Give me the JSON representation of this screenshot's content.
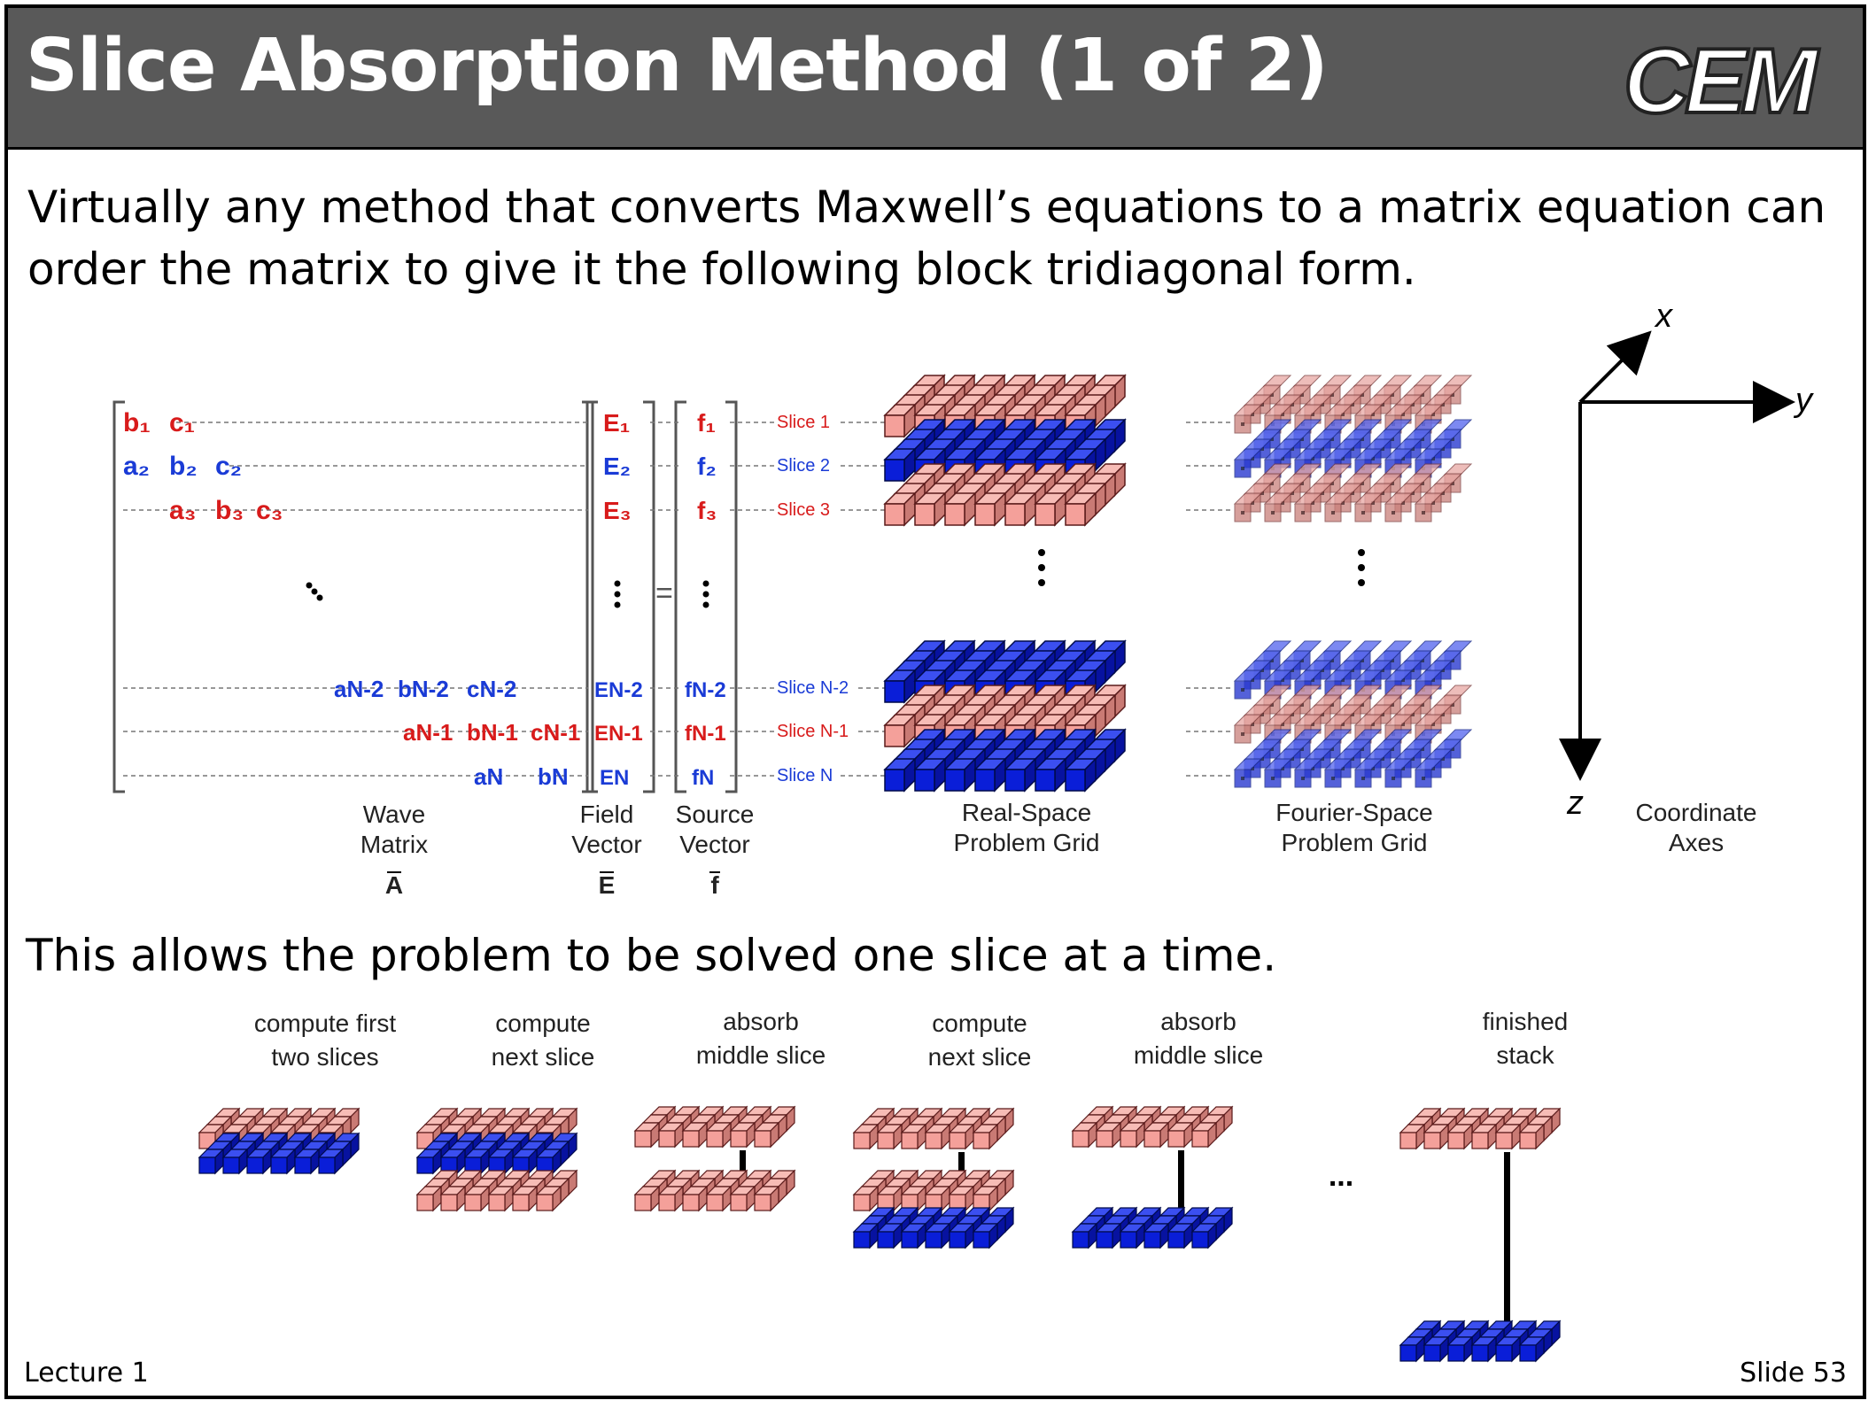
{
  "header": {
    "title": "Slice Absorption Method (1 of 2)",
    "logo_text": "CEM"
  },
  "intro_text": "Virtually any method that converts Maxwell’s equations to a matrix equation can order the matrix to give it the following block tridiagonal form.",
  "matrix": {
    "rows": [
      {
        "cells": [
          "b₁",
          "c₁"
        ],
        "colors": [
          "#d81b1b",
          "#d81b1b"
        ]
      },
      {
        "cells": [
          "a₂",
          "b₂",
          "c₂"
        ],
        "colors": [
          "#1a3bd6",
          "#1a3bd6",
          "#1a3bd6"
        ]
      },
      {
        "cells": [
          "a₃",
          "b₃",
          "c₃"
        ],
        "colors": [
          "#d81b1b",
          "#d81b1b",
          "#d81b1b"
        ]
      },
      {
        "cells": [
          "aN-2",
          "bN-2",
          "cN-2"
        ],
        "colors": [
          "#1a3bd6",
          "#1a3bd6",
          "#1a3bd6"
        ]
      },
      {
        "cells": [
          "aN-1",
          "bN-1",
          "cN-1"
        ],
        "colors": [
          "#d81b1b",
          "#d81b1b",
          "#d81b1b"
        ]
      },
      {
        "cells": [
          "aN",
          "bN"
        ],
        "colors": [
          "#1a3bd6",
          "#1a3bd6"
        ]
      }
    ],
    "field_entries": [
      "E₁",
      "E₂",
      "E₃",
      "EN-2",
      "EN-1",
      "EN"
    ],
    "source_entries": [
      "f₁",
      "f₂",
      "f₃",
      "fN-2",
      "fN-1",
      "fN"
    ],
    "equals": "=",
    "slice_labels": [
      "Slice 1",
      "Slice 2",
      "Slice 3",
      "Slice N-2",
      "Slice N-1",
      "Slice N"
    ],
    "label_wave": [
      "Wave",
      "Matrix"
    ],
    "label_wave_sym": "A",
    "label_field": [
      "Field",
      "Vector"
    ],
    "label_field_sym": "E",
    "label_source": [
      "Source",
      "Vector"
    ],
    "label_source_sym": "f"
  },
  "grids": {
    "real_label": [
      "Real-Space",
      "Problem Grid"
    ],
    "fourier_label": [
      "Fourier-Space",
      "Problem Grid"
    ],
    "axes_label": [
      "Coordinate",
      "Axes"
    ],
    "axis_x": "x",
    "axis_y": "y",
    "axis_z": "z"
  },
  "colors": {
    "red_slice": "#f4a09a",
    "blue_slice": "#0a1ed8",
    "red_text": "#d81b1b",
    "blue_text": "#1a3bd6",
    "header_bg": "#595959"
  },
  "allows_text": "This allows the problem to be solved one slice at a time.",
  "sequence": [
    {
      "label": [
        "compute first",
        "two slices"
      ]
    },
    {
      "label": [
        "compute",
        "next slice"
      ]
    },
    {
      "label": [
        "absorb",
        "middle slice"
      ]
    },
    {
      "label": [
        "compute",
        "next slice"
      ]
    },
    {
      "label": [
        "absorb",
        "middle slice"
      ]
    },
    {
      "label": [
        "finished",
        "stack"
      ]
    }
  ],
  "ellipsis": "...",
  "footer": {
    "lecture": "Lecture 1",
    "slide": "Slide 53"
  }
}
